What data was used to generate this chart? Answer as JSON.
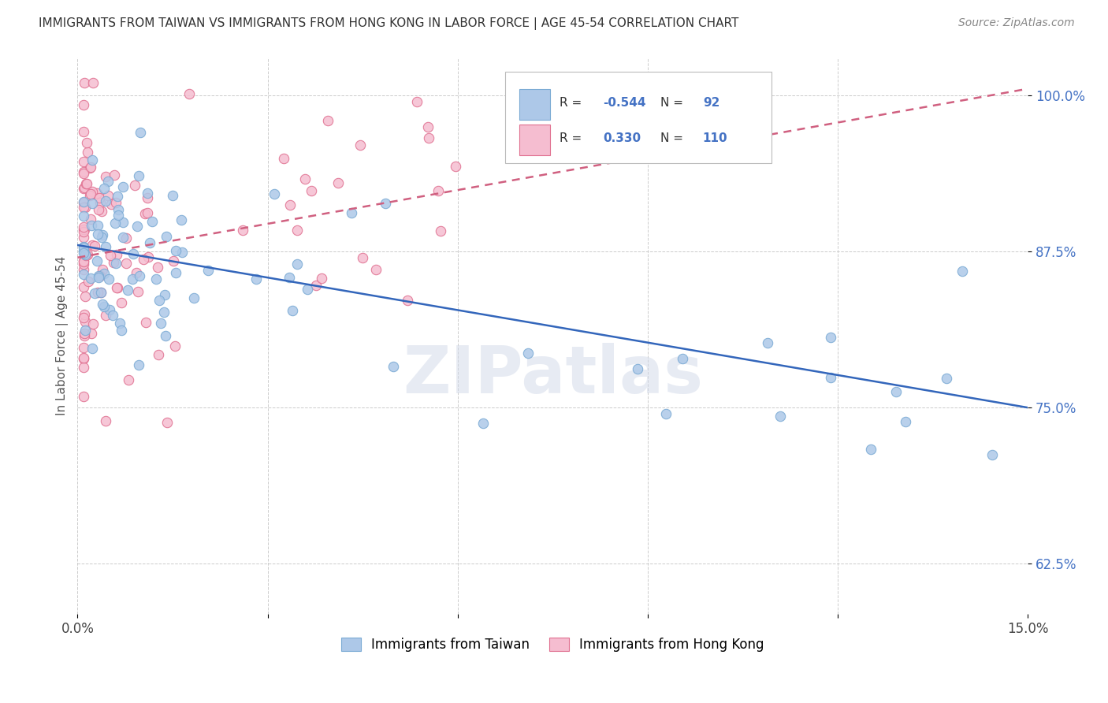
{
  "title": "IMMIGRANTS FROM TAIWAN VS IMMIGRANTS FROM HONG KONG IN LABOR FORCE | AGE 45-54 CORRELATION CHART",
  "source": "Source: ZipAtlas.com",
  "ylabel": "In Labor Force | Age 45-54",
  "xlim": [
    0.0,
    0.15
  ],
  "ylim": [
    0.585,
    1.03
  ],
  "ytick_positions": [
    0.625,
    0.75,
    0.875,
    1.0
  ],
  "ytick_labels": [
    "62.5%",
    "75.0%",
    "87.5%",
    "100.0%"
  ],
  "taiwan_color": "#adc8e8",
  "taiwan_edge": "#7aaad4",
  "hk_color": "#f5bdd0",
  "hk_edge": "#e07090",
  "taiwan_R": -0.544,
  "taiwan_N": 92,
  "hk_R": 0.33,
  "hk_N": 110,
  "taiwan_line_color": "#3366bb",
  "hk_line_color": "#d06080",
  "background_color": "#ffffff",
  "tw_line_x0": 0.0,
  "tw_line_y0": 0.88,
  "tw_line_x1": 0.15,
  "tw_line_y1": 0.75,
  "hk_line_x0": 0.0,
  "hk_line_y0": 0.87,
  "hk_line_x1": 0.15,
  "hk_line_y1": 1.005
}
